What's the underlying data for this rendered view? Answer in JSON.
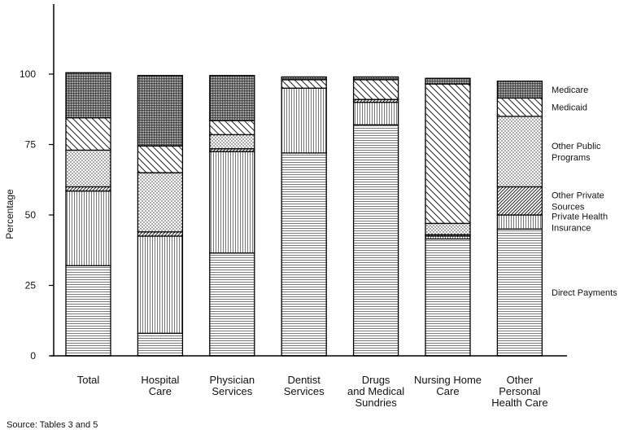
{
  "source_note": "Source: Tables 3 and 5",
  "chart_data": {
    "type": "bar",
    "stacked": true,
    "title": "",
    "xlabel": "",
    "ylabel": "Percentage",
    "ylim": [
      0,
      100
    ],
    "yticks": [
      "0",
      "25",
      "50",
      "75",
      "100"
    ],
    "grid": false,
    "legend_position": "right",
    "categories": [
      [
        "Total"
      ],
      [
        "Hospital",
        "Care"
      ],
      [
        "Physician",
        "Services"
      ],
      [
        "Dentist",
        "Services"
      ],
      [
        "Drugs",
        "and Medical",
        "Sundries"
      ],
      [
        "Nursing Home",
        "Care"
      ],
      [
        "Other",
        "Personal",
        "Health Care"
      ]
    ],
    "series": [
      {
        "name": "Direct Payments",
        "legend_lines": [
          "Direct Payments"
        ],
        "pattern": "horizontal-lines",
        "values": [
          32,
          8,
          36.5,
          72,
          82,
          41.5,
          45
        ]
      },
      {
        "name": "Private Health Insurance",
        "legend_lines": [
          "Private Health",
          "Insurance"
        ],
        "pattern": "vertical-lines",
        "values": [
          26.5,
          34.5,
          36,
          23,
          8,
          1,
          5
        ]
      },
      {
        "name": "Other Private Sources",
        "legend_lines": [
          "Other Private",
          "Sources"
        ],
        "pattern": "dense-diagonal",
        "values": [
          1.5,
          1.5,
          1,
          0,
          1,
          0.5,
          10
        ]
      },
      {
        "name": "Other Public Programs",
        "legend_lines": [
          "Other Public",
          "Programs"
        ],
        "pattern": "dots",
        "values": [
          13,
          21,
          5,
          0,
          0,
          4,
          25
        ]
      },
      {
        "name": "Medicaid",
        "legend_lines": [
          "Medicaid"
        ],
        "pattern": "wide-diagonal",
        "values": [
          11.5,
          9.5,
          5,
          3,
          7,
          49.5,
          6.5
        ]
      },
      {
        "name": "Medicare",
        "legend_lines": [
          "Medicare"
        ],
        "pattern": "crosshatch",
        "values": [
          16,
          25,
          16,
          1,
          1,
          2,
          6
        ]
      }
    ]
  }
}
